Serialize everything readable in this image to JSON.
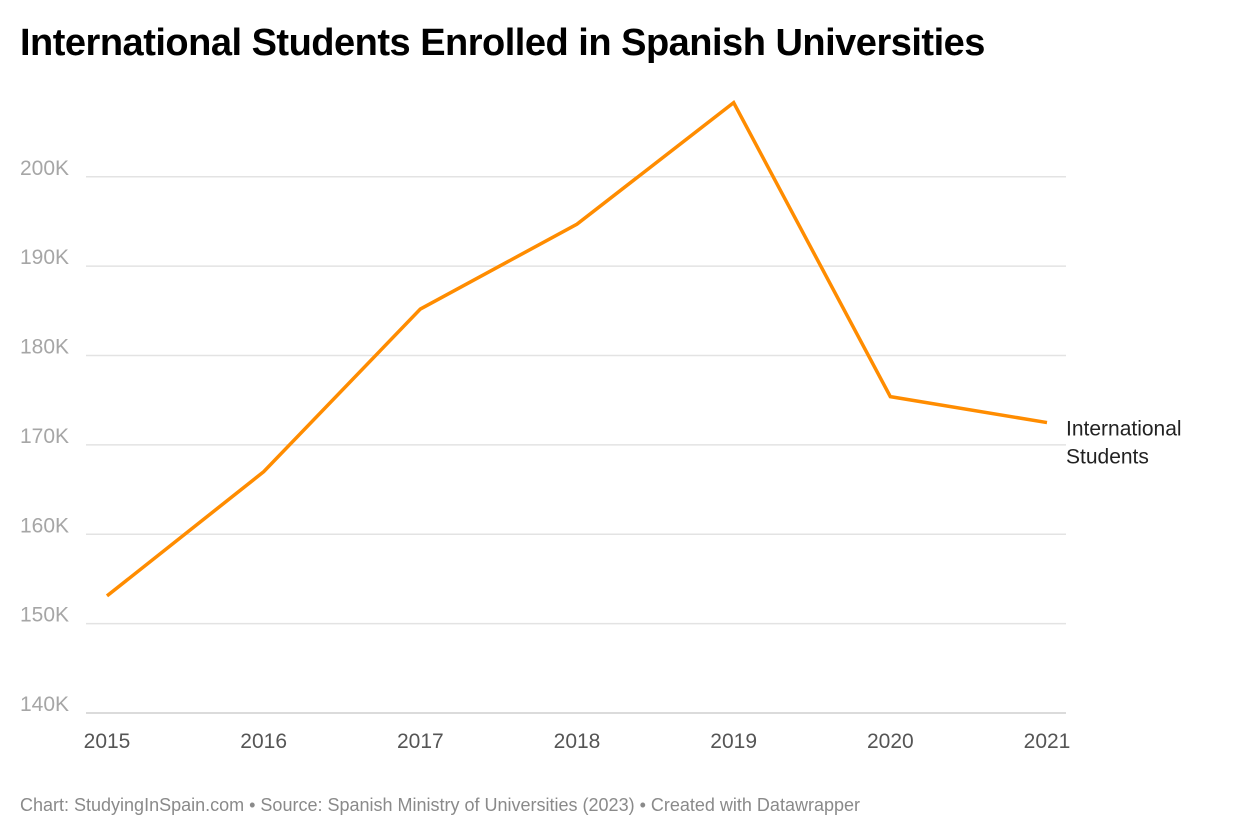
{
  "chart_data": {
    "type": "line",
    "title": "International Students Enrolled in Spanish Universities",
    "xlabel": "",
    "ylabel": "",
    "x": [
      "2015",
      "2016",
      "2017",
      "2018",
      "2019",
      "2020",
      "2021"
    ],
    "series": [
      {
        "name": "International Students",
        "values": [
          153100,
          167000,
          185200,
          194700,
          208300,
          175400,
          172500
        ],
        "color": "#ff8c00"
      }
    ],
    "ylim": [
      140000,
      208300
    ],
    "yticks": [
      140000,
      150000,
      160000,
      170000,
      180000,
      190000,
      200000
    ],
    "ytick_labels": [
      "140K",
      "150K",
      "160K",
      "170K",
      "180K",
      "190K",
      "200K"
    ],
    "grid": true,
    "legend": "inline label at line end"
  },
  "footer": {
    "text": "Chart: StudyingInSpain.com • Source: Spanish Ministry of Universities (2023)  • Created with Datawrapper"
  }
}
